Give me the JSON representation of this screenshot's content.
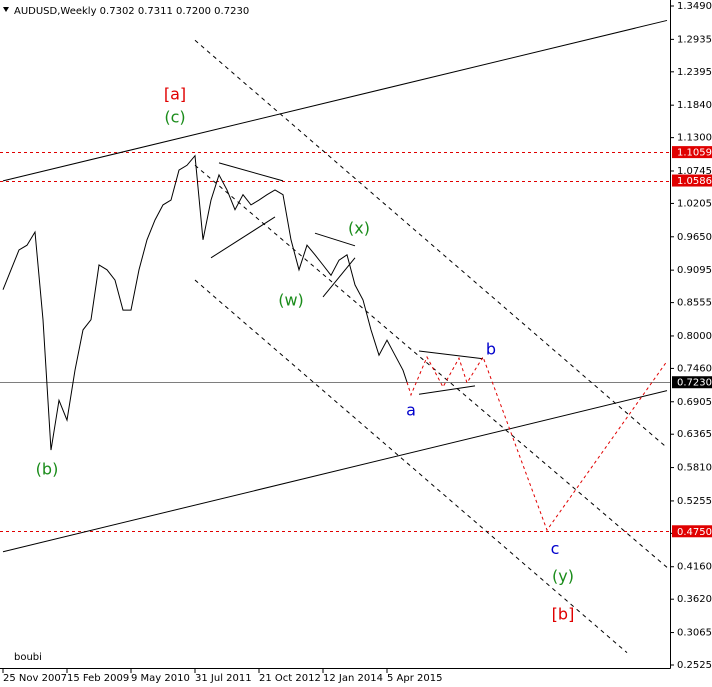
{
  "chart_data": {
    "type": "line",
    "title": "AUDUSD,Weekly  0.7302 0.7311 0.7200 0.7230",
    "watermark": "boubi",
    "xlim": [
      "2007-11-04",
      "2020-09-06"
    ],
    "ylim": [
      0.2475,
      1.359
    ],
    "xticks": [
      {
        "value": "2007-11-25",
        "label": "25 Nov 2007"
      },
      {
        "value": "2009-02-15",
        "label": "15 Feb 2009"
      },
      {
        "value": "2010-05-09",
        "label": "9 May 2010"
      },
      {
        "value": "2011-07-31",
        "label": "31 Jul 2011"
      },
      {
        "value": "2012-10-21",
        "label": "21 Oct 2012"
      },
      {
        "value": "2014-01-12",
        "label": "12 Jan 2014"
      },
      {
        "value": "2015-04-05",
        "label": "5 Apr 2015"
      }
    ],
    "yticks": [
      {
        "value": 1.349,
        "label": "1.3490"
      },
      {
        "value": 1.2935,
        "label": "1.2935"
      },
      {
        "value": 1.2395,
        "label": "1.2395"
      },
      {
        "value": 1.184,
        "label": "1.1840"
      },
      {
        "value": 1.13,
        "label": "1.1300"
      },
      {
        "value": 1.0745,
        "label": "1.0745"
      },
      {
        "value": 1.0205,
        "label": "1.0205"
      },
      {
        "value": 0.965,
        "label": "0.9650"
      },
      {
        "value": 0.9095,
        "label": "0.9095"
      },
      {
        "value": 0.8555,
        "label": "0.8555"
      },
      {
        "value": 0.8,
        "label": "0.8000"
      },
      {
        "value": 0.746,
        "label": "0.7460"
      },
      {
        "value": 0.6905,
        "label": "0.6905"
      },
      {
        "value": 0.6365,
        "label": "0.6365"
      },
      {
        "value": 0.581,
        "label": "0.5810"
      },
      {
        "value": 0.5255,
        "label": "0.5255"
      },
      {
        "value": 0.4715,
        "label": "0.4715"
      },
      {
        "value": 0.416,
        "label": "0.4160"
      },
      {
        "value": 0.362,
        "label": "0.3620"
      },
      {
        "value": 0.3065,
        "label": "0.3065"
      },
      {
        "value": 0.2525,
        "label": "0.2525"
      }
    ],
    "series": [
      {
        "color": "#000000",
        "dashed": false,
        "x": [
          "2007-11-25",
          "2008-01-20",
          "2008-03-16",
          "2008-05-11",
          "2008-07-06",
          "2008-08-31",
          "2008-10-26",
          "2008-12-21",
          "2009-02-15",
          "2009-04-12",
          "2009-06-07",
          "2009-08-02",
          "2009-09-27",
          "2009-11-22",
          "2010-01-17",
          "2010-03-14",
          "2010-05-09",
          "2010-07-04",
          "2010-08-29",
          "2010-10-24",
          "2010-12-19",
          "2011-02-13",
          "2011-04-10",
          "2011-06-05",
          "2011-07-31",
          "2011-09-25",
          "2011-11-20",
          "2012-01-15",
          "2012-03-11",
          "2012-05-06",
          "2012-07-01",
          "2012-08-26",
          "2012-10-21",
          "2012-12-16",
          "2013-02-10",
          "2013-04-07",
          "2013-06-02",
          "2013-07-28",
          "2013-09-22",
          "2013-11-17",
          "2014-01-12",
          "2014-03-09",
          "2014-05-04",
          "2014-06-29",
          "2014-08-24",
          "2014-10-19",
          "2014-12-14",
          "2015-02-08",
          "2015-04-05",
          "2015-05-31",
          "2015-07-26",
          "2015-08-23"
        ],
        "values": [
          0.877,
          0.91,
          0.943,
          0.951,
          0.973,
          0.827,
          0.61,
          0.693,
          0.66,
          0.743,
          0.81,
          0.827,
          0.918,
          0.91,
          0.893,
          0.843,
          0.843,
          0.91,
          0.96,
          0.993,
          1.018,
          1.026,
          1.076,
          1.084,
          1.1,
          0.96,
          1.026,
          1.068,
          1.043,
          1.01,
          1.035,
          1.018,
          1.026,
          1.035,
          1.043,
          1.035,
          0.96,
          0.91,
          0.951,
          0.935,
          0.918,
          0.901,
          0.926,
          0.935,
          0.885,
          0.86,
          0.81,
          0.768,
          0.793,
          0.768,
          0.743,
          0.723
        ]
      },
      {
        "color": "#e00000",
        "dashed": true,
        "x": [
          "2015-08-23",
          "2015-09-20",
          "2016-01-10",
          "2016-05-01",
          "2016-08-21",
          "2016-10-16",
          "2017-02-05",
          "2018-04-29",
          "2020-08-16"
        ],
        "values": [
          0.723,
          0.702,
          0.765,
          0.715,
          0.763,
          0.722,
          0.765,
          0.477,
          0.758
        ]
      }
    ],
    "levels": [
      {
        "value": 1.1059,
        "color": "#e00000",
        "dashed": true
      },
      {
        "value": 1.0586,
        "color": "#e00000",
        "dashed": true
      },
      {
        "value": 0.723,
        "label": "0.7230",
        "color": "#000000",
        "dashed": false
      },
      {
        "value": 0.475,
        "label": "0.4750",
        "color": "#e00000",
        "dashed": true
      }
    ],
    "trendlines": [
      {
        "x": [
          "2007-11-25",
          "2020-08-16"
        ],
        "y": [
          1.058,
          1.325
        ],
        "color": "#000000",
        "dashed": false
      },
      {
        "x": [
          "2007-11-25",
          "2020-08-16"
        ],
        "y": [
          0.441,
          0.709
        ],
        "color": "#000000",
        "dashed": false
      },
      {
        "x": [
          "2011-07-31",
          "2020-08-16"
        ],
        "y": [
          1.292,
          0.614
        ],
        "color": "#000000",
        "dashed": true
      },
      {
        "x": [
          "2011-07-31",
          "2020-08-16"
        ],
        "y": [
          1.084,
          0.415
        ],
        "color": "#000000",
        "dashed": true
      },
      {
        "x": [
          "2011-07-31",
          "2019-11-10"
        ],
        "y": [
          0.893,
          0.273
        ],
        "color": "#000000",
        "dashed": true
      },
      {
        "x": [
          "2012-01-15",
          "2013-04-07"
        ],
        "y": [
          1.088,
          1.058
        ],
        "color": "#000000",
        "dashed": false
      },
      {
        "x": [
          "2011-11-20",
          "2013-02-10"
        ],
        "y": [
          0.93,
          0.998
        ],
        "color": "#000000",
        "dashed": false
      },
      {
        "x": [
          "2013-11-17",
          "2014-08-24"
        ],
        "y": [
          0.971,
          0.95
        ],
        "color": "#000000",
        "dashed": false
      },
      {
        "x": [
          "2014-01-12",
          "2014-08-24"
        ],
        "y": [
          0.865,
          0.93
        ],
        "color": "#000000",
        "dashed": false
      },
      {
        "x": [
          "2015-11-15",
          "2017-02-05"
        ],
        "y": [
          0.775,
          0.762
        ],
        "color": "#000000",
        "dashed": false
      },
      {
        "x": [
          "2015-11-15",
          "2016-12-11"
        ],
        "y": [
          0.703,
          0.717
        ],
        "color": "#000000",
        "dashed": false
      }
    ],
    "annotations": [
      {
        "text": "[a]",
        "color": "#e00000",
        "x": "2011-03-13",
        "y": 1.201
      },
      {
        "text": "(c)",
        "color": "#1a8c1a",
        "x": "2011-03-13",
        "y": 1.163
      },
      {
        "text": "(b)",
        "color": "#1a8c1a",
        "x": "2008-09-28",
        "y": 0.577
      },
      {
        "text": "(w)",
        "color": "#1a8c1a",
        "x": "2013-06-02",
        "y": 0.858
      },
      {
        "text": "(x)",
        "color": "#1a8c1a",
        "x": "2014-09-21",
        "y": 0.978
      },
      {
        "text": "a",
        "color": "#0000cc",
        "x": "2015-09-20",
        "y": 0.675
      },
      {
        "text": "b",
        "color": "#0000cc",
        "x": "2017-04-02",
        "y": 0.777
      },
      {
        "text": "c",
        "color": "#0000cc",
        "x": "2018-06-24",
        "y": 0.445
      },
      {
        "text": "(y)",
        "color": "#1a8c1a",
        "x": "2018-08-19",
        "y": 0.399
      },
      {
        "text": "[b]",
        "color": "#e00000",
        "x": "2018-08-19",
        "y": 0.336
      }
    ]
  }
}
